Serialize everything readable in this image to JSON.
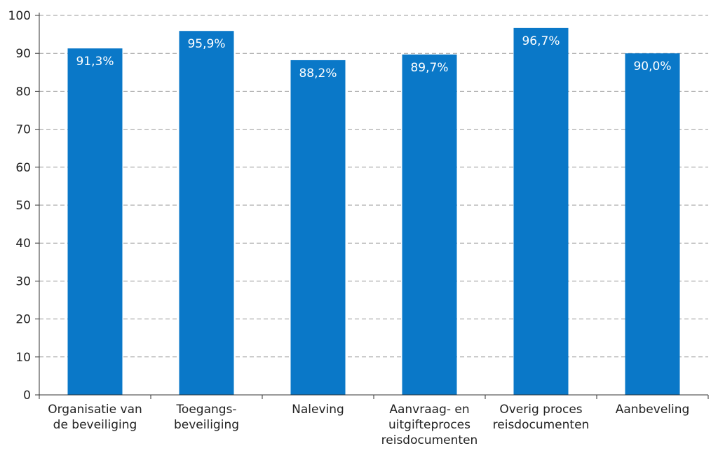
{
  "chart_data": {
    "type": "bar",
    "title": "",
    "xlabel": "",
    "ylabel": "",
    "ylim": [
      0,
      100
    ],
    "yticks": [
      0,
      10,
      20,
      30,
      40,
      50,
      60,
      70,
      80,
      90,
      100
    ],
    "grid": true,
    "categories": [
      [
        "Organisatie van",
        "de beveiliging"
      ],
      [
        "Toegangs-",
        "beveiliging"
      ],
      [
        "Naleving"
      ],
      [
        "Aanvraag- en",
        "uitgifteproces",
        "reisdocumenten"
      ],
      [
        "Overig proces",
        "reisdocumenten"
      ],
      [
        "Aanbeveling"
      ]
    ],
    "values": [
      91.3,
      95.9,
      88.2,
      89.7,
      96.7,
      90.0
    ],
    "data_labels": [
      "91,3%",
      "95,9%",
      "88,2%",
      "89,7%",
      "96,7%",
      "90,0%"
    ],
    "bar_color": "#0a78c8",
    "label_color": "#ffffff"
  }
}
